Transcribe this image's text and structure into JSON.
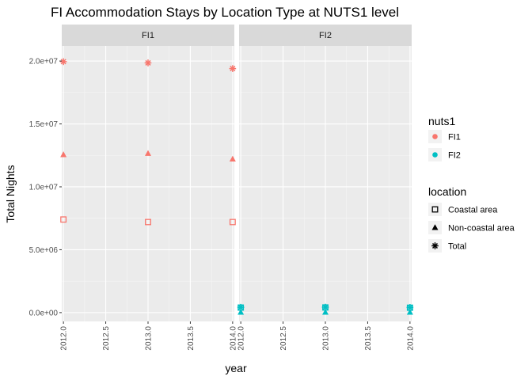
{
  "chart_data": {
    "type": "scatter",
    "title": "FI Accommodation Stays by Location Type at NUTS1 level",
    "xlabel": "year",
    "ylabel": "Total Nights",
    "xlim": [
      2011.98,
      2014.02
    ],
    "ylim": [
      -700000,
      21200000
    ],
    "x_ticks": [
      2012.0,
      2012.5,
      2013.0,
      2013.5,
      2014.0
    ],
    "x_tick_labels": [
      "2012.0",
      "2012.5",
      "2013.0",
      "2013.5",
      "2014.0"
    ],
    "y_ticks": [
      0,
      5000000,
      10000000,
      15000000,
      20000000
    ],
    "y_tick_labels": [
      "0.0e+00",
      "5.0e+06",
      "1.0e+07",
      "1.5e+07",
      "2.0e+07"
    ],
    "grid": true,
    "panels": [
      {
        "facet": "FI1",
        "color": "#F8766D",
        "series": [
          {
            "location": "Coastal area",
            "x": [
              2012,
              2013,
              2014
            ],
            "y": [
              7400000,
              7200000,
              7200000
            ]
          },
          {
            "location": "Non-coastal area",
            "x": [
              2012,
              2013,
              2014
            ],
            "y": [
              12550000,
              12650000,
              12200000
            ]
          },
          {
            "location": "Total",
            "x": [
              2012,
              2013,
              2014
            ],
            "y": [
              19950000,
              19850000,
              19400000
            ]
          }
        ]
      },
      {
        "facet": "FI2",
        "color": "#00BFC4",
        "series": [
          {
            "location": "Coastal area",
            "x": [
              2012,
              2013,
              2014
            ],
            "y": [
              400000,
              410000,
              390000
            ]
          },
          {
            "location": "Non-coastal area",
            "x": [
              2012,
              2013,
              2014
            ],
            "y": [
              20000,
              20000,
              20000
            ]
          },
          {
            "location": "Total",
            "x": [
              2012,
              2013,
              2014
            ],
            "y": [
              420000,
              430000,
              410000
            ]
          }
        ]
      }
    ],
    "legend": {
      "position": "right",
      "color_title": "nuts1",
      "color_entries": [
        {
          "label": "FI1",
          "color": "#F8766D"
        },
        {
          "label": "FI2",
          "color": "#00BFC4"
        }
      ],
      "shape_title": "location",
      "shape_entries": [
        {
          "label": "Coastal area",
          "shape": "open-square"
        },
        {
          "label": "Non-coastal area",
          "shape": "filled-triangle"
        },
        {
          "label": "Total",
          "shape": "asterisk"
        }
      ]
    }
  }
}
